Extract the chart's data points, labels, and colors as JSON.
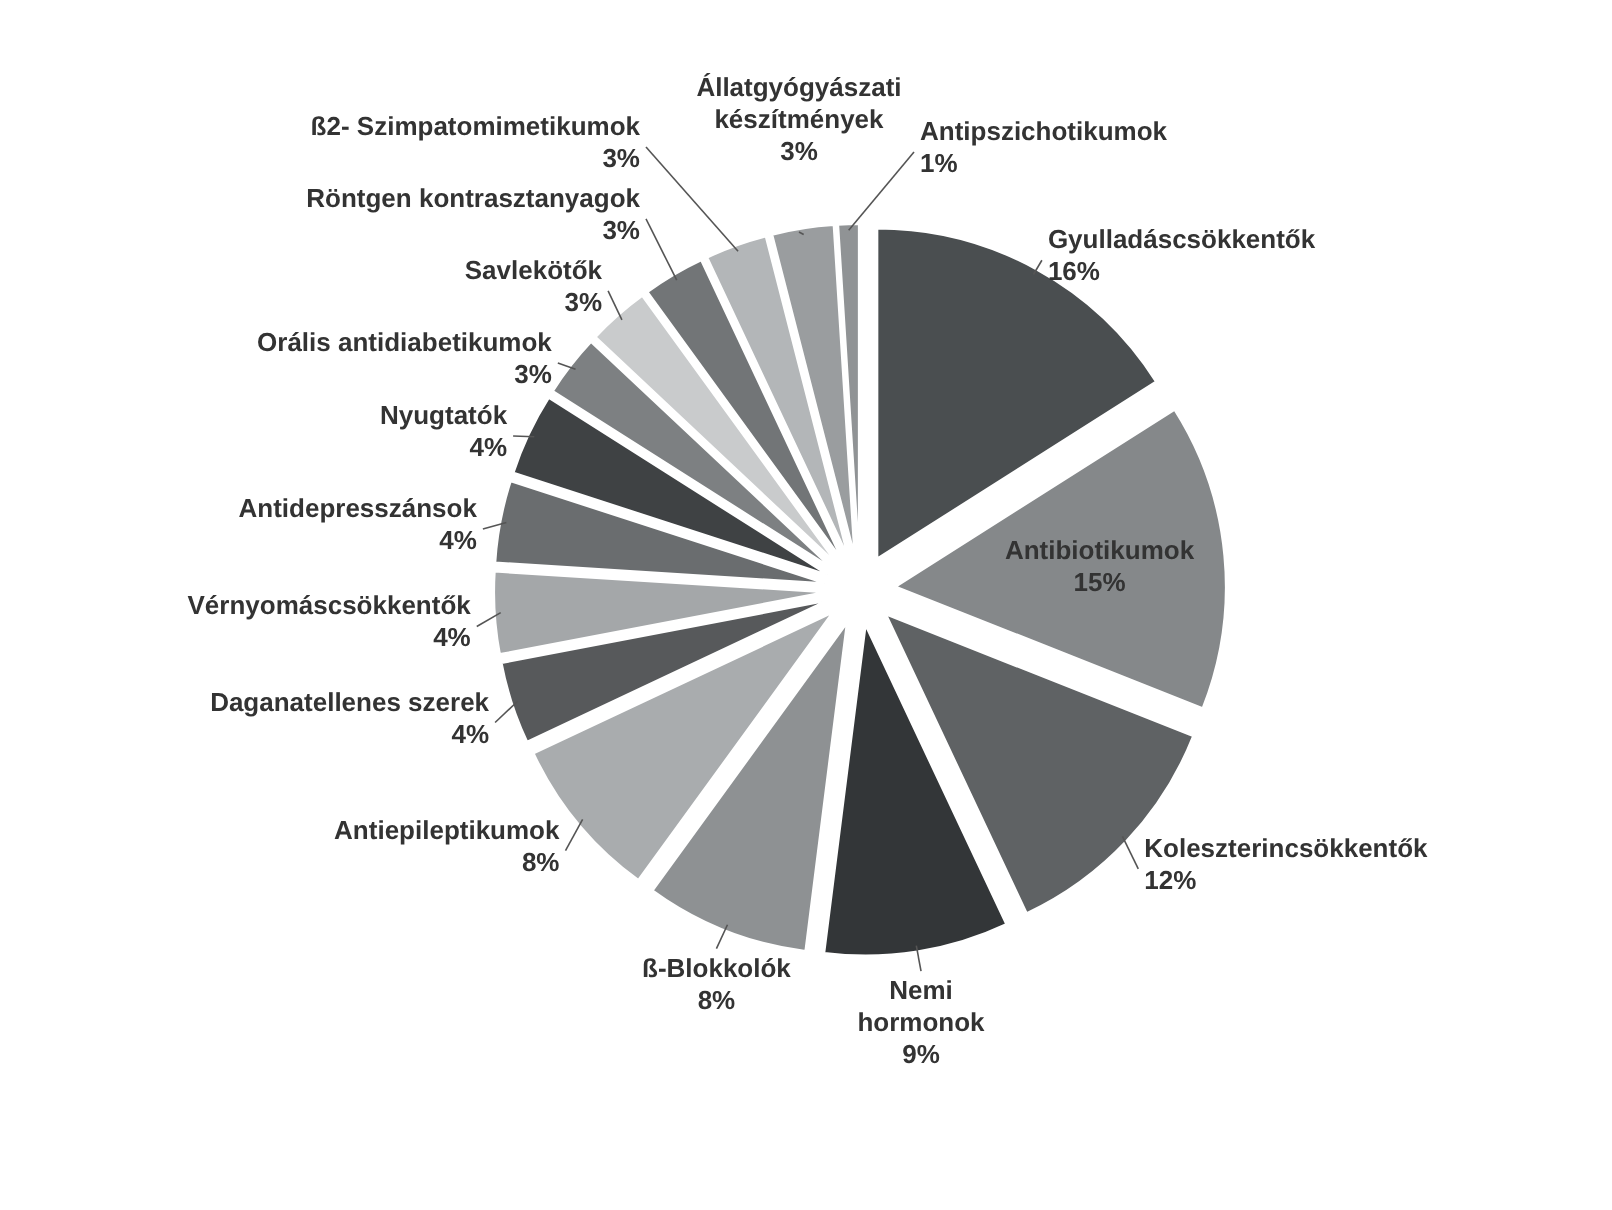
{
  "chart_data": {
    "type": "pie",
    "categories": [
      "Gyulladáscsökkentők",
      "Antibiotikumok",
      "Koleszterincsökkentők",
      "Nemi hormonok",
      "ß-Blokkolók",
      "Antiepileptikumok",
      "Daganatellenes szerek",
      "Vérnyomáscsökkentők",
      "Antidepresszánsok",
      "Nyugtatók",
      "Orális antidiabetikumok",
      "Savlekötők",
      "Röntgen kontrasztanyagok",
      "ß2- Szimpatomimetikumok",
      "Állatgyógyászati készítmények",
      "Antipszichotikumok"
    ],
    "values": [
      16,
      15,
      12,
      9,
      8,
      8,
      4,
      4,
      4,
      4,
      3,
      3,
      3,
      3,
      3,
      1
    ],
    "value_labels": [
      "16%",
      "15%",
      "12%",
      "9%",
      "8%",
      "8%",
      "4%",
      "4%",
      "4%",
      "4%",
      "3%",
      "3%",
      "3%",
      "3%",
      "3%",
      "1%"
    ],
    "colors": [
      "#4a4e50",
      "#85888a",
      "#5f6264",
      "#333638",
      "#8e9193",
      "#a9acae",
      "#57595b",
      "#a4a7a9",
      "#6a6d6f",
      "#3f4244",
      "#7d8082",
      "#c9cbcc",
      "#727577",
      "#b3b6b8",
      "#9a9d9f",
      "#909395"
    ]
  }
}
